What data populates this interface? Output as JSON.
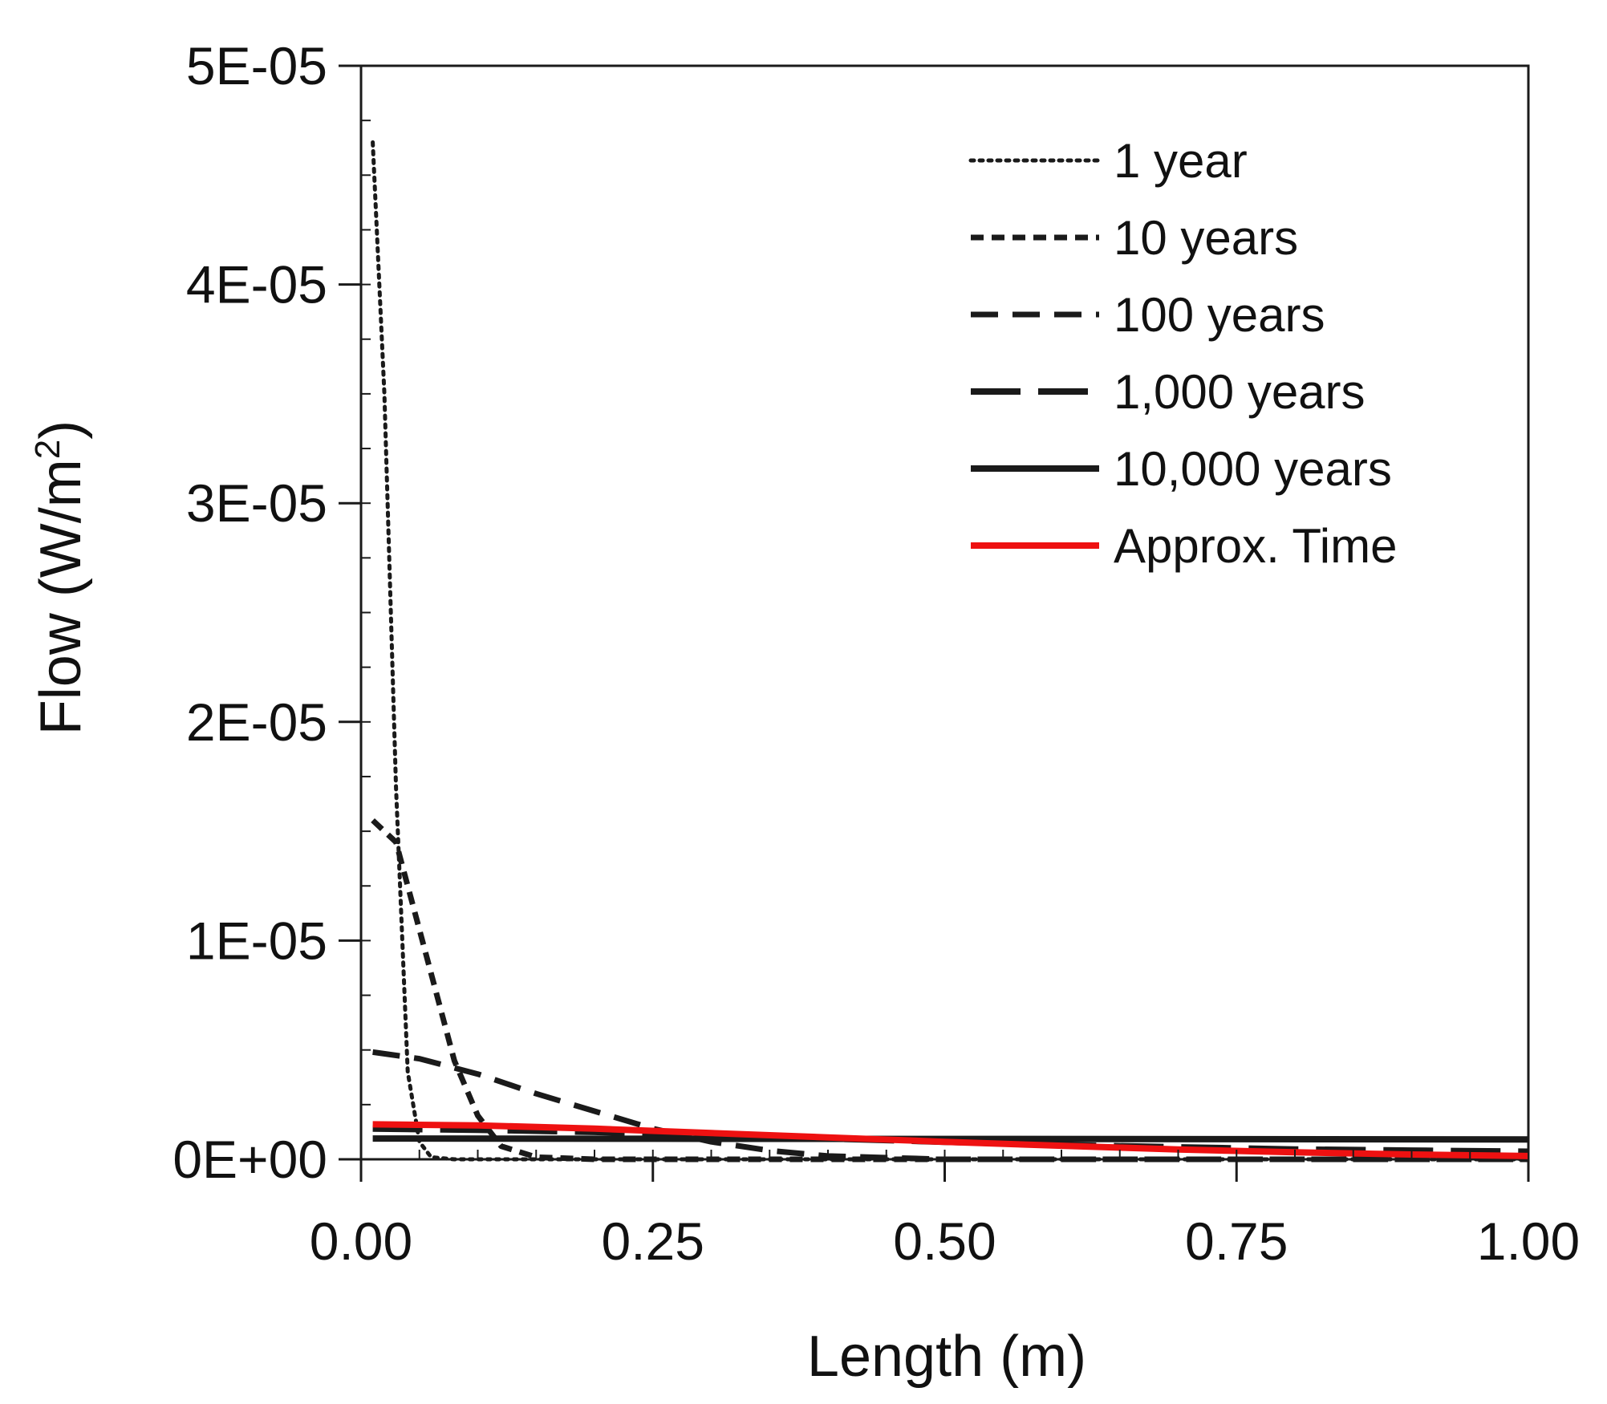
{
  "chart_data": {
    "type": "line",
    "title": "",
    "xlabel": "Length (m)",
    "ylabel": "Flow (W/m",
    "ylabel_superscript": "2",
    "ylabel_suffix": ")",
    "xlim": [
      0,
      1
    ],
    "ylim": [
      0,
      5e-05
    ],
    "x_ticks": [
      0,
      0.25,
      0.5,
      0.75,
      1.0
    ],
    "x_tick_labels": [
      "0.00",
      "0.25",
      "0.50",
      "0.75",
      "1.00"
    ],
    "y_ticks": [
      0,
      1e-05,
      2e-05,
      3e-05,
      4e-05,
      5e-05
    ],
    "y_tick_labels": [
      "0E+00",
      "1E-05",
      "2E-05",
      "3E-05",
      "4E-05",
      "5E-05"
    ],
    "y_minor_step": 2.5e-06,
    "x_minor_step": 0.05,
    "grid": false,
    "legend_position": "top-right",
    "series": [
      {
        "name": "1 year",
        "style": "dotted",
        "color": "#1a1a1a",
        "x": [
          0.01,
          0.02,
          0.03,
          0.04,
          0.05,
          0.06,
          0.08,
          0.1,
          0.15,
          0.2,
          0.3,
          0.5,
          0.75,
          1.0
        ],
        "y": [
          4.65e-05,
          3.5e-05,
          1.7e-05,
          4e-06,
          8e-07,
          1e-07,
          0,
          0,
          0,
          0,
          0,
          0,
          0,
          0
        ]
      },
      {
        "name": "10 years",
        "style": "short-dash",
        "color": "#1a1a1a",
        "x": [
          0.01,
          0.03,
          0.05,
          0.08,
          0.1,
          0.12,
          0.15,
          0.2,
          0.3,
          0.5,
          0.75,
          1.0
        ],
        "y": [
          1.55e-05,
          1.45e-05,
          1.05e-05,
          4.5e-06,
          2e-06,
          6e-07,
          1e-07,
          0,
          0,
          0,
          0,
          0
        ]
      },
      {
        "name": "100 years",
        "style": "dash",
        "color": "#1a1a1a",
        "x": [
          0.01,
          0.05,
          0.1,
          0.15,
          0.2,
          0.25,
          0.3,
          0.35,
          0.4,
          0.5,
          0.75,
          1.0
        ],
        "y": [
          4.9e-06,
          4.6e-06,
          3.9e-06,
          3e-06,
          2.2e-06,
          1.4e-06,
          8e-07,
          4e-07,
          1.5e-07,
          0,
          0,
          0
        ]
      },
      {
        "name": "1,000 years",
        "style": "long-dash",
        "color": "#1a1a1a",
        "x": [
          0.01,
          0.1,
          0.2,
          0.3,
          0.4,
          0.5,
          0.6,
          0.7,
          0.8,
          0.9,
          1.0
        ],
        "y": [
          1.4e-06,
          1.35e-06,
          1.25e-06,
          1.1e-06,
          9.5e-07,
          8e-07,
          6.5e-07,
          5.5e-07,
          4.5e-07,
          4e-07,
          3.5e-07
        ]
      },
      {
        "name": "10,000 years",
        "style": "solid",
        "color": "#1a1a1a",
        "x": [
          0.01,
          0.25,
          0.5,
          0.75,
          1.0
        ],
        "y": [
          9.5e-07,
          9.4e-07,
          9.3e-07,
          9.2e-07,
          9.1e-07
        ]
      },
      {
        "name": "Approx. Time",
        "style": "solid",
        "color": "#ee1111",
        "x": [
          0.01,
          0.1,
          0.2,
          0.3,
          0.4,
          0.5,
          0.6,
          0.7,
          0.8,
          0.9,
          1.0
        ],
        "y": [
          1.6e-06,
          1.55e-06,
          1.4e-06,
          1.2e-06,
          1e-06,
          8e-07,
          6.2e-07,
          4.5e-07,
          3.2e-07,
          2.2e-07,
          1.5e-07
        ]
      }
    ]
  }
}
